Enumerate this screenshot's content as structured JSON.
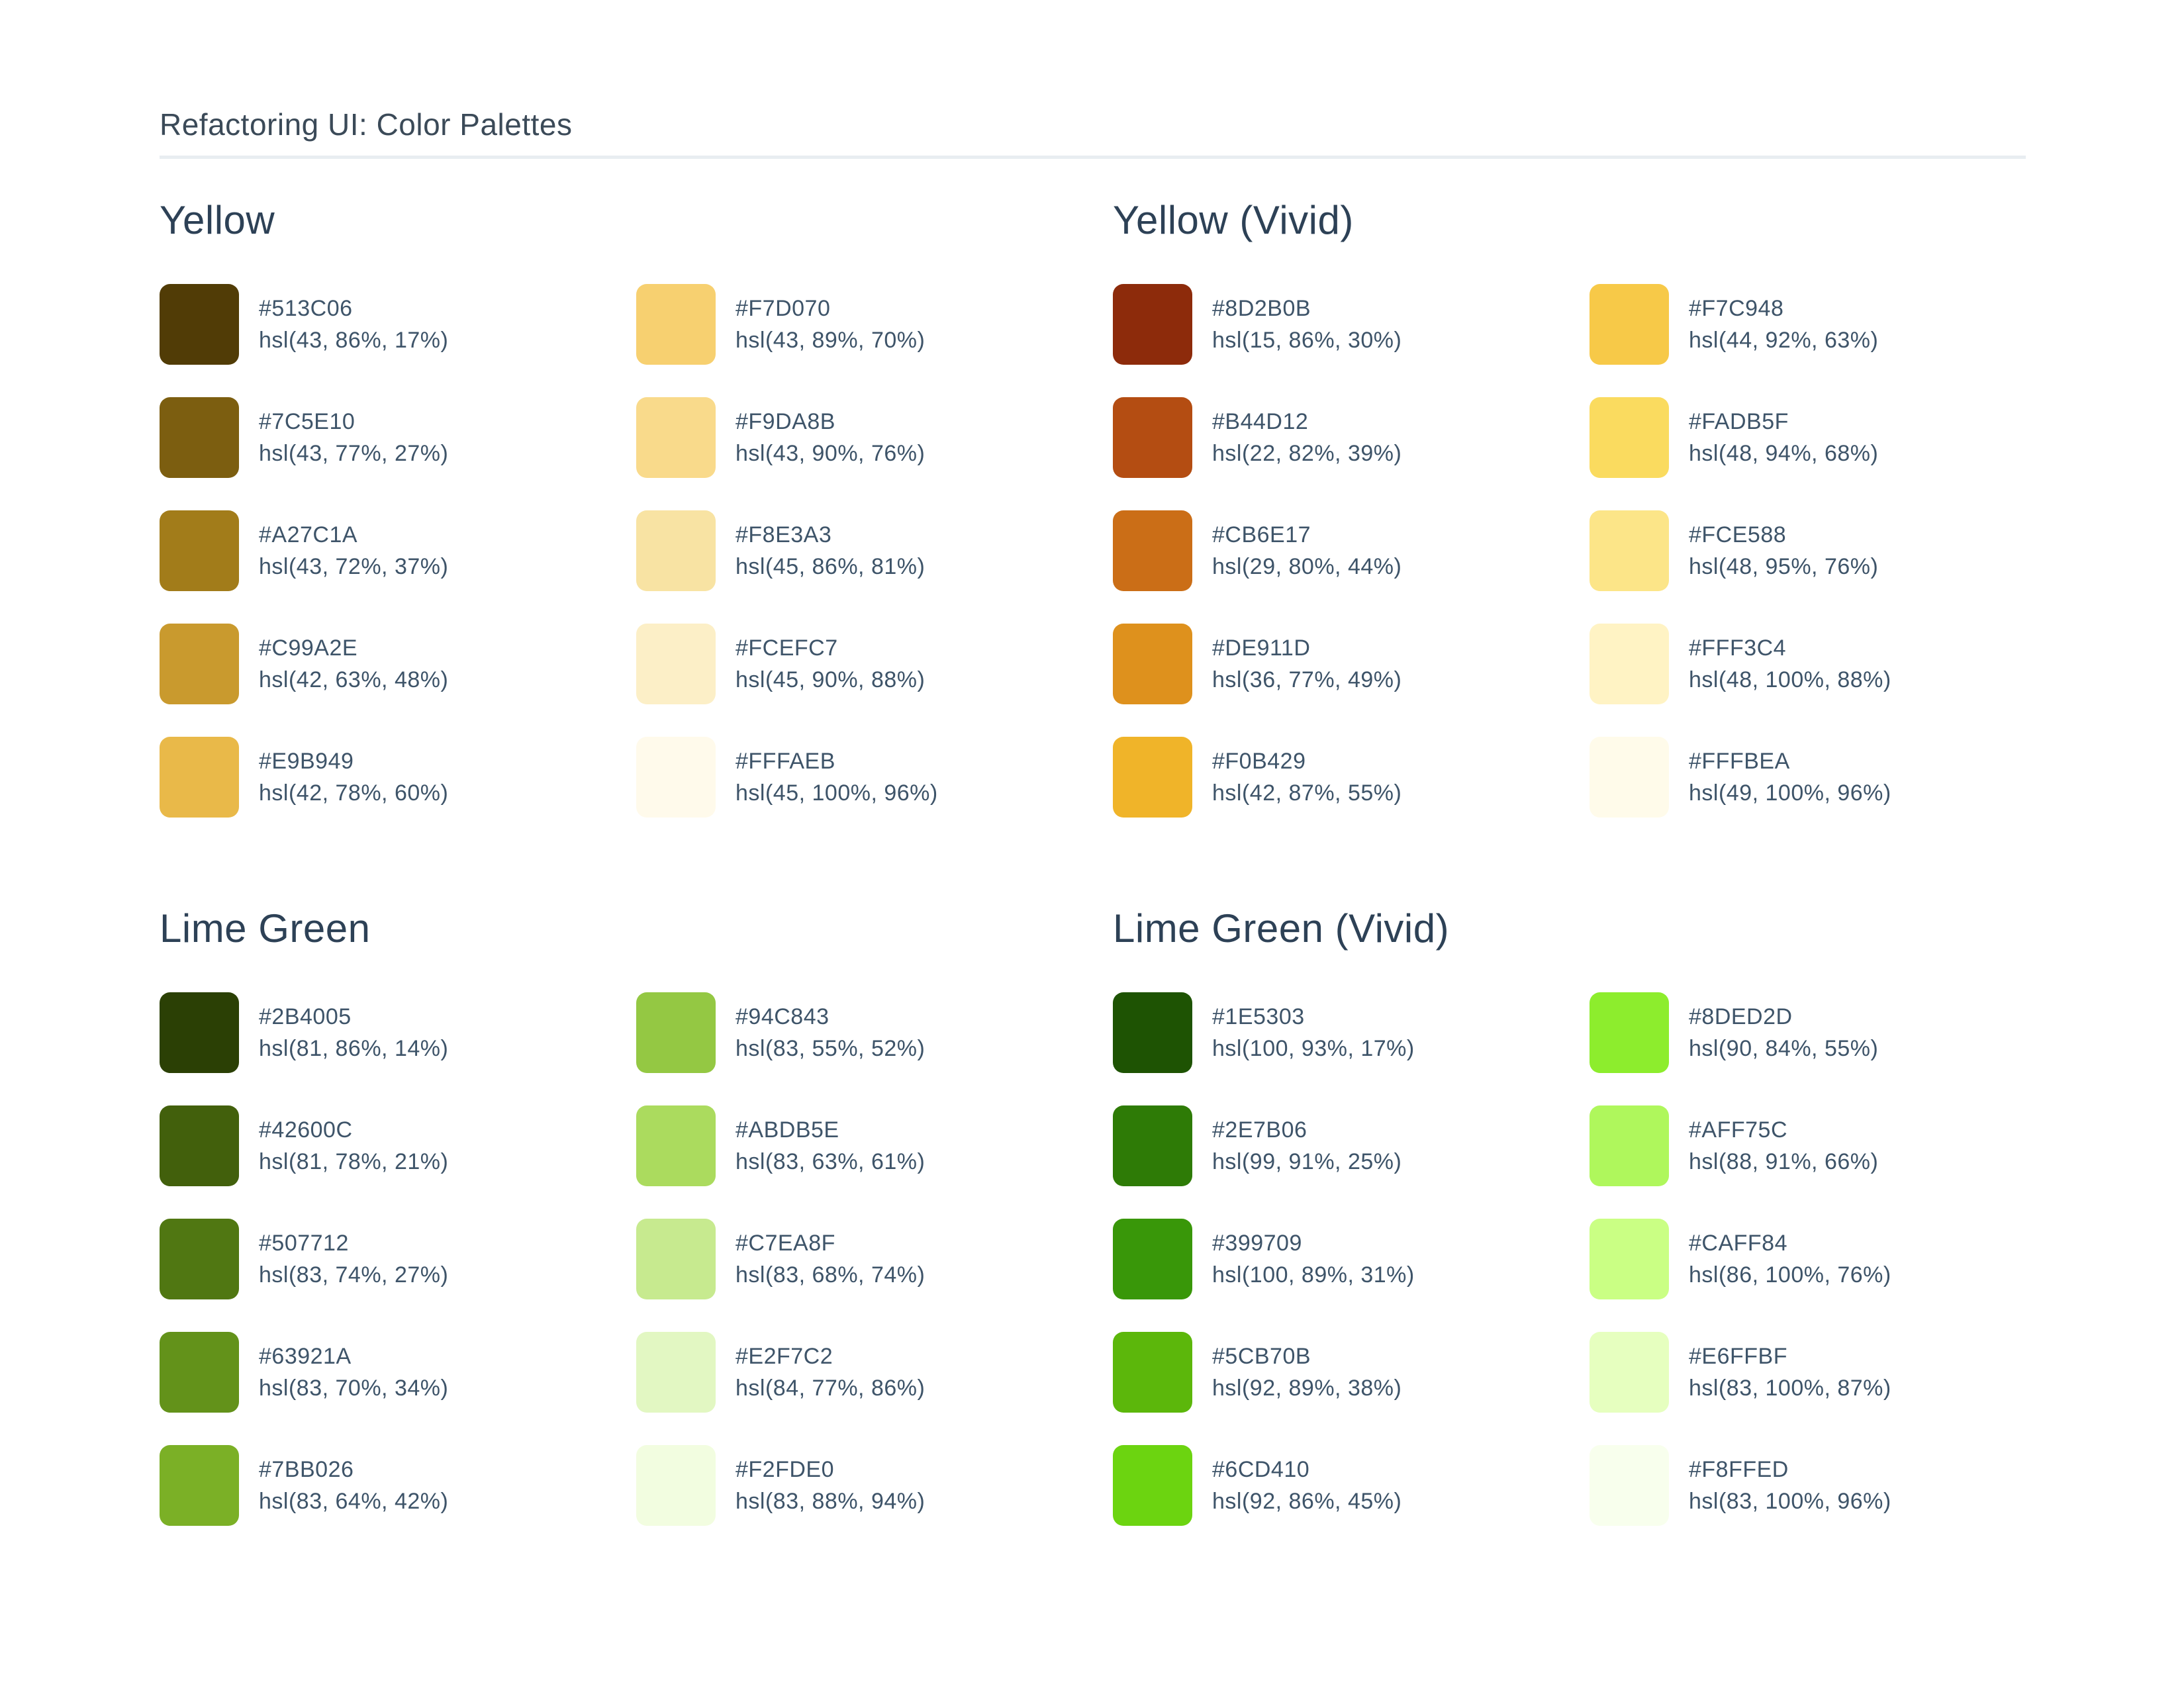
{
  "page": {
    "title": "Refactoring UI: Color Palettes",
    "divider_color": "#e8edf1",
    "heading_text_color": "#2d4156",
    "label_text_color": "#3e5469"
  },
  "sections": [
    {
      "title": "Yellow",
      "swatches": [
        {
          "hex": "#513C06",
          "hsl": "hsl(43, 86%, 17%)"
        },
        {
          "hex": "#7C5E10",
          "hsl": "hsl(43, 77%, 27%)"
        },
        {
          "hex": "#A27C1A",
          "hsl": "hsl(43, 72%, 37%)"
        },
        {
          "hex": "#C99A2E",
          "hsl": "hsl(42, 63%, 48%)"
        },
        {
          "hex": "#E9B949",
          "hsl": "hsl(42, 78%, 60%)"
        },
        {
          "hex": "#F7D070",
          "hsl": "hsl(43, 89%, 70%)"
        },
        {
          "hex": "#F9DA8B",
          "hsl": "hsl(43, 90%, 76%)"
        },
        {
          "hex": "#F8E3A3",
          "hsl": "hsl(45, 86%, 81%)"
        },
        {
          "hex": "#FCEFC7",
          "hsl": "hsl(45, 90%, 88%)"
        },
        {
          "hex": "#FFFAEB",
          "hsl": "hsl(45, 100%, 96%)"
        }
      ]
    },
    {
      "title": "Yellow (Vivid)",
      "swatches": [
        {
          "hex": "#8D2B0B",
          "hsl": "hsl(15, 86%, 30%)"
        },
        {
          "hex": "#B44D12",
          "hsl": "hsl(22, 82%, 39%)"
        },
        {
          "hex": "#CB6E17",
          "hsl": "hsl(29, 80%, 44%)"
        },
        {
          "hex": "#DE911D",
          "hsl": "hsl(36, 77%, 49%)"
        },
        {
          "hex": "#F0B429",
          "hsl": "hsl(42, 87%, 55%)"
        },
        {
          "hex": "#F7C948",
          "hsl": "hsl(44, 92%, 63%)"
        },
        {
          "hex": "#FADB5F",
          "hsl": "hsl(48, 94%, 68%)"
        },
        {
          "hex": "#FCE588",
          "hsl": "hsl(48, 95%, 76%)"
        },
        {
          "hex": "#FFF3C4",
          "hsl": "hsl(48, 100%, 88%)"
        },
        {
          "hex": "#FFFBEA",
          "hsl": "hsl(49, 100%, 96%)"
        }
      ]
    },
    {
      "title": "Lime Green",
      "swatches": [
        {
          "hex": "#2B4005",
          "hsl": "hsl(81, 86%, 14%)"
        },
        {
          "hex": "#42600C",
          "hsl": "hsl(81, 78%, 21%)"
        },
        {
          "hex": "#507712",
          "hsl": "hsl(83, 74%, 27%)"
        },
        {
          "hex": "#63921A",
          "hsl": "hsl(83, 70%, 34%)"
        },
        {
          "hex": "#7BB026",
          "hsl": "hsl(83, 64%, 42%)"
        },
        {
          "hex": "#94C843",
          "hsl": "hsl(83, 55%, 52%)"
        },
        {
          "hex": "#ABDB5E",
          "hsl": "hsl(83, 63%, 61%)"
        },
        {
          "hex": "#C7EA8F",
          "hsl": "hsl(83, 68%, 74%)"
        },
        {
          "hex": "#E2F7C2",
          "hsl": "hsl(84, 77%, 86%)"
        },
        {
          "hex": "#F2FDE0",
          "hsl": "hsl(83, 88%, 94%)"
        }
      ]
    },
    {
      "title": "Lime Green (Vivid)",
      "swatches": [
        {
          "hex": "#1E5303",
          "hsl": "hsl(100, 93%, 17%)"
        },
        {
          "hex": "#2E7B06",
          "hsl": "hsl(99, 91%, 25%)"
        },
        {
          "hex": "#399709",
          "hsl": "hsl(100, 89%, 31%)"
        },
        {
          "hex": "#5CB70B",
          "hsl": "hsl(92, 89%, 38%)"
        },
        {
          "hex": "#6CD410",
          "hsl": "hsl(92, 86%, 45%)"
        },
        {
          "hex": "#8DED2D",
          "hsl": "hsl(90, 84%, 55%)"
        },
        {
          "hex": "#AFF75C",
          "hsl": "hsl(88, 91%, 66%)"
        },
        {
          "hex": "#CAFF84",
          "hsl": "hsl(86, 100%, 76%)"
        },
        {
          "hex": "#E6FFBF",
          "hsl": "hsl(83, 100%, 87%)"
        },
        {
          "hex": "#F8FFED",
          "hsl": "hsl(83, 100%, 96%)"
        }
      ]
    }
  ]
}
